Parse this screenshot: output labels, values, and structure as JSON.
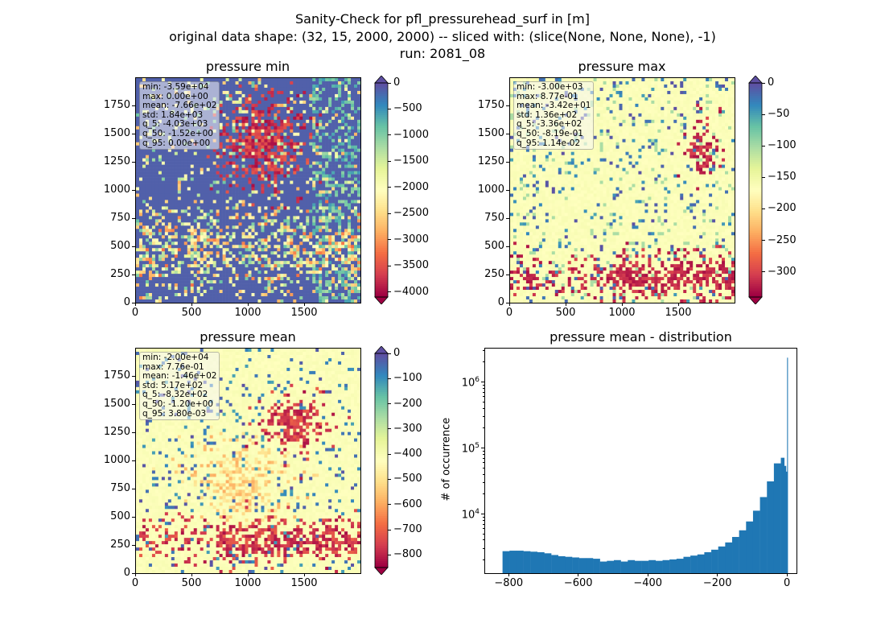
{
  "suptitle": {
    "line1": "Sanity-Check for pfl_pressurehead_surf in [m]",
    "line2": "original data shape: (32, 15, 2000, 2000) -- sliced with: (slice(None, None, None), -1)",
    "line3": "run: 2081_08"
  },
  "panels": {
    "pmin": {
      "title": "pressure min",
      "stats": [
        "min: -3.59e+04",
        "max: 0.00e+00",
        "mean: -7.66e+02",
        "std: 1.84e+03",
        "q_5: -4.03e+03",
        "q_50: -1.52e+00",
        "q_95: 0.00e+00"
      ],
      "xticks": [
        "0",
        "500",
        "1000",
        "1500"
      ],
      "yticks": [
        "0",
        "250",
        "500",
        "750",
        "1000",
        "1250",
        "1500",
        "1750"
      ],
      "colorbar": {
        "vmin": -4100,
        "vmax": 0,
        "ticks": [
          "0",
          "−500",
          "−1000",
          "−1500",
          "−2000",
          "−2500",
          "−3000",
          "−3500",
          "−4000"
        ],
        "tick_values": [
          0,
          -500,
          -1000,
          -1500,
          -2000,
          -2500,
          -3000,
          -3500,
          -4000
        ],
        "extend": "both",
        "cmap": "Spectral"
      }
    },
    "pmax": {
      "title": "pressure max",
      "stats": [
        "min: -3.00e+03",
        "max: 8.77e-01",
        "mean: -3.42e+01",
        "std: 1.36e+02",
        "q_5: -3.36e+02",
        "q_50: -8.19e-01",
        "q_95: 1.14e-02"
      ],
      "xticks": [
        "0",
        "500",
        "1000",
        "1500"
      ],
      "yticks": [
        "0",
        "250",
        "500",
        "750",
        "1000",
        "1250",
        "1500",
        "1750"
      ],
      "colorbar": {
        "vmin": -340,
        "vmax": 0,
        "ticks": [
          "0",
          "−50",
          "−100",
          "−150",
          "−200",
          "−250",
          "−300"
        ],
        "tick_values": [
          0,
          -50,
          -100,
          -150,
          -200,
          -250,
          -300
        ],
        "extend": "both",
        "cmap": "Spectral"
      }
    },
    "pmean": {
      "title": "pressure mean",
      "stats": [
        "min: -2.00e+04",
        "max: 7.76e-01",
        "mean: -1.46e+02",
        "std: 5.17e+02",
        "q_5: -8.32e+02",
        "q_50: -1.20e+00",
        "q_95: 3.80e-03"
      ],
      "xticks": [
        "0",
        "500",
        "1000",
        "1500"
      ],
      "yticks": [
        "0",
        "250",
        "500",
        "750",
        "1000",
        "1250",
        "1500",
        "1750"
      ],
      "colorbar": {
        "vmin": -850,
        "vmax": 0,
        "ticks": [
          "0",
          "−100",
          "−200",
          "−300",
          "−400",
          "−500",
          "−600",
          "−700",
          "−800"
        ],
        "tick_values": [
          0,
          -100,
          -200,
          -300,
          -400,
          -500,
          -600,
          -700,
          -800
        ],
        "extend": "both",
        "cmap": "Spectral"
      }
    },
    "hist": {
      "title": "pressure mean - distribution",
      "ylabel": "# of occurrence",
      "xticks": [
        "−800",
        "−600",
        "−400",
        "−200",
        "0"
      ],
      "yticks": [
        "10",
        "10",
        "10"
      ],
      "ytick_exps": [
        "4",
        "5",
        "6"
      ]
    }
  },
  "chart_data": [
    {
      "type": "heatmap",
      "title": "pressure min",
      "xlim": [
        0,
        2000
      ],
      "ylim": [
        0,
        2000
      ],
      "x_ticks": [
        0,
        500,
        1000,
        1500
      ],
      "y_ticks": [
        0,
        250,
        500,
        750,
        1000,
        1250,
        1500,
        1750
      ],
      "colorbar_range": [
        -4100,
        0
      ],
      "colormap": "Spectral",
      "summary_stats": {
        "min": -35900,
        "max": 0.0,
        "mean": -766,
        "std": 1840,
        "q_5": -4030,
        "q_50": -1.52,
        "q_95": 0.0
      }
    },
    {
      "type": "heatmap",
      "title": "pressure max",
      "xlim": [
        0,
        2000
      ],
      "ylim": [
        0,
        2000
      ],
      "x_ticks": [
        0,
        500,
        1000,
        1500
      ],
      "y_ticks": [
        0,
        250,
        500,
        750,
        1000,
        1250,
        1500,
        1750
      ],
      "colorbar_range": [
        -340,
        0
      ],
      "colormap": "Spectral",
      "summary_stats": {
        "min": -3000,
        "max": 0.877,
        "mean": -34.2,
        "std": 136,
        "q_5": -336,
        "q_50": -0.819,
        "q_95": 0.0114
      }
    },
    {
      "type": "heatmap",
      "title": "pressure mean",
      "xlim": [
        0,
        2000
      ],
      "ylim": [
        0,
        2000
      ],
      "x_ticks": [
        0,
        500,
        1000,
        1500
      ],
      "y_ticks": [
        0,
        250,
        500,
        750,
        1000,
        1250,
        1500,
        1750
      ],
      "colorbar_range": [
        -850,
        0
      ],
      "colormap": "Spectral",
      "summary_stats": {
        "min": -20000,
        "max": 0.776,
        "mean": -146,
        "std": 517,
        "q_5": -832,
        "q_50": -1.2,
        "q_95": 0.0038
      }
    },
    {
      "type": "bar",
      "title": "pressure mean - distribution",
      "xlabel": "",
      "ylabel": "# of occurrence",
      "xlim": [
        -870,
        25
      ],
      "ylog": true,
      "ylim": [
        1300,
        3300000
      ],
      "bar_color": "#1f77b4",
      "x": [
        -820,
        -800,
        -780,
        -760,
        -740,
        -720,
        -700,
        -680,
        -660,
        -640,
        -620,
        -600,
        -580,
        -560,
        -540,
        -520,
        -500,
        -480,
        -460,
        -440,
        -420,
        -400,
        -380,
        -360,
        -340,
        -320,
        -300,
        -280,
        -260,
        -240,
        -220,
        -200,
        -180,
        -160,
        -140,
        -120,
        -100,
        -80,
        -60,
        -40,
        -20,
        -10,
        -5,
        -2
      ],
      "values": [
        2800,
        2850,
        2850,
        2800,
        2750,
        2700,
        2600,
        2450,
        2350,
        2300,
        2250,
        2200,
        2200,
        2150,
        1950,
        2000,
        2050,
        1950,
        2050,
        2000,
        2000,
        2050,
        2000,
        2050,
        2100,
        2150,
        2300,
        2400,
        2500,
        2700,
        2950,
        3300,
        3800,
        4600,
        5800,
        7900,
        11500,
        18500,
        32000,
        60000,
        73000,
        55000,
        45000,
        2400000
      ]
    }
  ]
}
